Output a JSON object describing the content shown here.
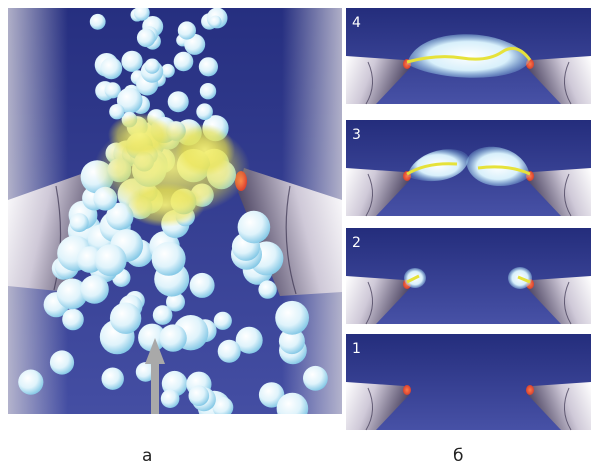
{
  "figure": {
    "panel_a": {
      "label": "а"
    },
    "panel_b": {
      "label": "б",
      "stages": [
        {
          "number": "4"
        },
        {
          "number": "3"
        },
        {
          "number": "2"
        },
        {
          "number": "1"
        }
      ]
    }
  },
  "colors": {
    "background_top": "#2a3384",
    "background_bottom": "#4a53a8",
    "electrode_light": "#e9e6ee",
    "electrode_dark": "#3b3450",
    "tip": "#e8503a",
    "bubble_light": "#ffffff",
    "bubble_blue": "#9fd6ec",
    "discharge_yellow": "#f2ee4e",
    "arrow": "#a9a9a9"
  },
  "icons": {
    "flow_arrow": "up-arrow-icon"
  }
}
